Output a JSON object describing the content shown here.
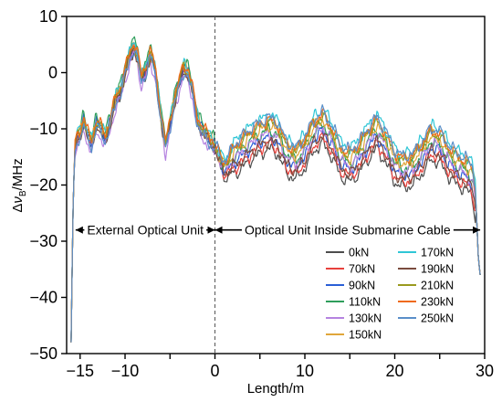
{
  "chart_data": {
    "type": "line",
    "xlabel": "Length/m",
    "ylabel_parts": [
      "Δ",
      "ν",
      "B",
      "/MHz"
    ],
    "xlim": [
      -16.5,
      30
    ],
    "ylim": [
      -50,
      10
    ],
    "xticks": [
      -15,
      -10,
      -5,
      0,
      5,
      10,
      15,
      20,
      25,
      30
    ],
    "xtick_labels": [
      "−15",
      "−10",
      "",
      "0",
      "",
      "10",
      "",
      "20",
      "",
      "30"
    ],
    "yticks": [
      10,
      0,
      -10,
      -20,
      -30,
      -40,
      -50
    ],
    "ytick_labels": [
      "10",
      "0",
      "−10",
      "−20",
      "−30",
      "−40",
      "−50"
    ],
    "divider_x": 0,
    "annotations": [
      {
        "text": "External Optical Unit",
        "x_from": -15.5,
        "x_to": 0,
        "y": -28
      },
      {
        "text": "Optical Unit Inside Submarine Cable",
        "x_from": 0,
        "x_to": 29.5,
        "y": -28
      }
    ],
    "legend_position": "bottom-right",
    "series": [
      {
        "name": "0kN",
        "color": "#4d4d4d",
        "offset_ext": -0.6,
        "offset_int": -4.0,
        "phase": 0.0
      },
      {
        "name": "70kN",
        "color": "#e8413c",
        "offset_ext": -0.2,
        "offset_int": -3.0,
        "phase": 0.7
      },
      {
        "name": "90kN",
        "color": "#2a5fd6",
        "offset_ext": 0.0,
        "offset_int": -1.8,
        "phase": 1.3
      },
      {
        "name": "110kN",
        "color": "#2e9e5b",
        "offset_ext": 1.0,
        "offset_int": -0.6,
        "phase": 2.1
      },
      {
        "name": "130kN",
        "color": "#b583e0",
        "offset_ext": -1.5,
        "offset_int": -1.2,
        "phase": 2.9
      },
      {
        "name": "150kN",
        "color": "#e0a63a",
        "offset_ext": 0.3,
        "offset_int": 0.2,
        "phase": 3.6
      },
      {
        "name": "170kN",
        "color": "#2fc6d6",
        "offset_ext": 0.5,
        "offset_int": 2.0,
        "phase": 4.2
      },
      {
        "name": "190kN",
        "color": "#7a4b3e",
        "offset_ext": -0.4,
        "offset_int": -2.5,
        "phase": 4.9
      },
      {
        "name": "210kN",
        "color": "#9a9a1e",
        "offset_ext": 0.2,
        "offset_int": 0.8,
        "phase": 5.5
      },
      {
        "name": "230kN",
        "color": "#ef6a1a",
        "offset_ext": 0.6,
        "offset_int": 1.2,
        "phase": 6.1
      },
      {
        "name": "250kN",
        "color": "#5a8fc9",
        "offset_ext": -0.8,
        "offset_int": 1.6,
        "phase": 6.8
      }
    ],
    "base_profile": [
      [
        -16.0,
        -48
      ],
      [
        -15.8,
        -25
      ],
      [
        -15.6,
        -14
      ],
      [
        -15.3,
        -11
      ],
      [
        -15.0,
        -11
      ],
      [
        -14.6,
        -8.5
      ],
      [
        -14.2,
        -11
      ],
      [
        -13.7,
        -12.5
      ],
      [
        -13.2,
        -9
      ],
      [
        -12.7,
        -10
      ],
      [
        -12.2,
        -11.5
      ],
      [
        -11.6,
        -8.5
      ],
      [
        -11.0,
        -4.5
      ],
      [
        -10.5,
        -3
      ],
      [
        -10.0,
        0
      ],
      [
        -9.5,
        3
      ],
      [
        -9.0,
        5
      ],
      [
        -8.6,
        3
      ],
      [
        -8.2,
        -1
      ],
      [
        -7.7,
        0.5
      ],
      [
        -7.2,
        3.5
      ],
      [
        -6.7,
        1
      ],
      [
        -6.3,
        -4
      ],
      [
        -5.9,
        -9
      ],
      [
        -5.5,
        -13
      ],
      [
        -5.0,
        -9
      ],
      [
        -4.5,
        -5
      ],
      [
        -4.0,
        -2
      ],
      [
        -3.5,
        1
      ],
      [
        -3.0,
        0
      ],
      [
        -2.5,
        -3
      ],
      [
        -2.0,
        -8
      ],
      [
        -1.5,
        -10
      ],
      [
        -1.0,
        -11
      ],
      [
        -0.5,
        -12
      ],
      [
        0.0,
        -13
      ],
      [
        0.5,
        -15
      ],
      [
        1.0,
        -16.5
      ],
      [
        1.5,
        -16
      ],
      [
        2.0,
        -14.5
      ],
      [
        3.0,
        -13
      ],
      [
        4.0,
        -11.5
      ],
      [
        5.0,
        -10.5
      ],
      [
        6.0,
        -9.5
      ],
      [
        7.0,
        -10.5
      ],
      [
        8.0,
        -14
      ],
      [
        9.0,
        -15
      ],
      [
        10.0,
        -13
      ],
      [
        11.0,
        -10
      ],
      [
        12.0,
        -8.5
      ],
      [
        13.0,
        -11
      ],
      [
        14.0,
        -14.5
      ],
      [
        15.0,
        -15.5
      ],
      [
        16.0,
        -14
      ],
      [
        17.0,
        -11.5
      ],
      [
        18.0,
        -9.5
      ],
      [
        19.0,
        -12
      ],
      [
        20.0,
        -15.5
      ],
      [
        21.0,
        -16.5
      ],
      [
        22.0,
        -16
      ],
      [
        23.0,
        -14
      ],
      [
        24.0,
        -11.5
      ],
      [
        25.0,
        -12
      ],
      [
        26.0,
        -14.5
      ],
      [
        27.0,
        -16
      ],
      [
        28.0,
        -17
      ],
      [
        28.6,
        -18
      ],
      [
        29.0,
        -22
      ],
      [
        29.3,
        -33
      ],
      [
        29.5,
        -36
      ]
    ]
  }
}
